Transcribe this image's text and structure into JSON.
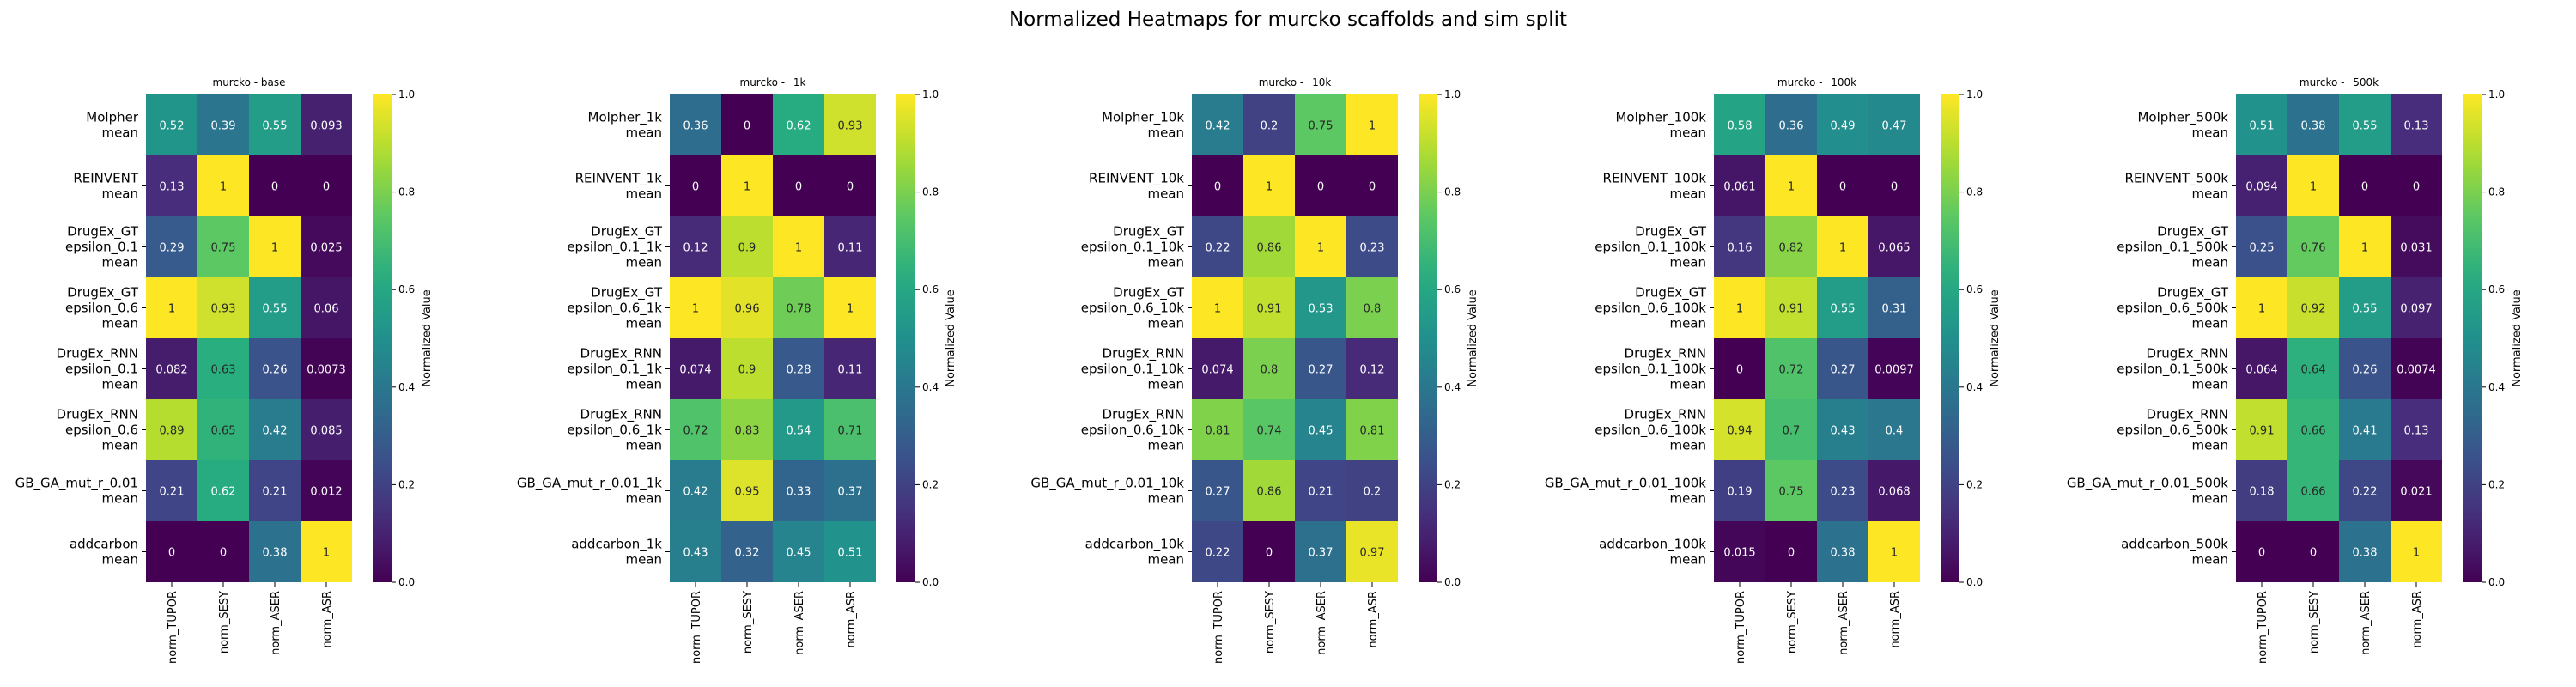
{
  "page": {
    "title": "Normalized Heatmaps for murcko scaffolds and sim split"
  },
  "chart_data": [
    {
      "type": "heatmap",
      "title": "murcko - base",
      "columns": [
        "norm_TUPOR",
        "norm_SESY",
        "norm_ASER",
        "norm_ASR"
      ],
      "rows": [
        [
          "Molpher",
          "mean"
        ],
        [
          "REINVENT",
          "mean"
        ],
        [
          "DrugEx_GT",
          "epsilon_0.1",
          "mean"
        ],
        [
          "DrugEx_GT",
          "epsilon_0.6",
          "mean"
        ],
        [
          "DrugEx_RNN",
          "epsilon_0.1",
          "mean"
        ],
        [
          "DrugEx_RNN",
          "epsilon_0.6",
          "mean"
        ],
        [
          "GB_GA_mut_r_0.01",
          "mean"
        ],
        [
          "addcarbon",
          "mean"
        ]
      ],
      "values": [
        [
          0.52,
          0.39,
          0.55,
          0.093
        ],
        [
          0.13,
          1,
          0,
          0
        ],
        [
          0.29,
          0.75,
          1,
          0.025
        ],
        [
          1,
          0.93,
          0.55,
          0.06
        ],
        [
          0.082,
          0.63,
          0.26,
          0.0073
        ],
        [
          0.89,
          0.65,
          0.42,
          0.085
        ],
        [
          0.21,
          0.62,
          0.21,
          0.012
        ],
        [
          0,
          0,
          0.38,
          1
        ]
      ],
      "value_labels": [
        [
          "0.52",
          "0.39",
          "0.55",
          "0.093"
        ],
        [
          "0.13",
          "1",
          "0",
          "0"
        ],
        [
          "0.29",
          "0.75",
          "1",
          "0.025"
        ],
        [
          "1",
          "0.93",
          "0.55",
          "0.06"
        ],
        [
          "0.082",
          "0.63",
          "0.26",
          "0.0073"
        ],
        [
          "0.89",
          "0.65",
          "0.42",
          "0.085"
        ],
        [
          "0.21",
          "0.62",
          "0.21",
          "0.012"
        ],
        [
          "0",
          "0",
          "0.38",
          "1"
        ]
      ],
      "colorbar": {
        "label": "Normalized Value",
        "range": [
          0,
          1
        ],
        "ticks": [
          "0.0",
          "0.2",
          "0.4",
          "0.6",
          "0.8",
          "1.0"
        ],
        "colormap": "viridis"
      }
    },
    {
      "type": "heatmap",
      "title": "murcko - _1k",
      "columns": [
        "norm_TUPOR",
        "norm_SESY",
        "norm_ASER",
        "norm_ASR"
      ],
      "rows": [
        [
          "Molpher_1k",
          "mean"
        ],
        [
          "REINVENT_1k",
          "mean"
        ],
        [
          "DrugEx_GT",
          "epsilon_0.1_1k",
          "mean"
        ],
        [
          "DrugEx_GT",
          "epsilon_0.6_1k",
          "mean"
        ],
        [
          "DrugEx_RNN",
          "epsilon_0.1_1k",
          "mean"
        ],
        [
          "DrugEx_RNN",
          "epsilon_0.6_1k",
          "mean"
        ],
        [
          "GB_GA_mut_r_0.01_1k",
          "mean"
        ],
        [
          "addcarbon_1k",
          "mean"
        ]
      ],
      "values": [
        [
          0.36,
          0,
          0.62,
          0.93
        ],
        [
          0,
          1,
          0,
          0
        ],
        [
          0.12,
          0.9,
          1,
          0.11
        ],
        [
          1,
          0.96,
          0.78,
          1
        ],
        [
          0.074,
          0.9,
          0.28,
          0.11
        ],
        [
          0.72,
          0.83,
          0.54,
          0.71
        ],
        [
          0.42,
          0.95,
          0.33,
          0.37
        ],
        [
          0.43,
          0.32,
          0.45,
          0.51
        ]
      ],
      "value_labels": [
        [
          "0.36",
          "0",
          "0.62",
          "0.93"
        ],
        [
          "0",
          "1",
          "0",
          "0"
        ],
        [
          "0.12",
          "0.9",
          "1",
          "0.11"
        ],
        [
          "1",
          "0.96",
          "0.78",
          "1"
        ],
        [
          "0.074",
          "0.9",
          "0.28",
          "0.11"
        ],
        [
          "0.72",
          "0.83",
          "0.54",
          "0.71"
        ],
        [
          "0.42",
          "0.95",
          "0.33",
          "0.37"
        ],
        [
          "0.43",
          "0.32",
          "0.45",
          "0.51"
        ]
      ],
      "colorbar": {
        "label": "Normalized Value",
        "range": [
          0,
          1
        ],
        "ticks": [
          "0.0",
          "0.2",
          "0.4",
          "0.6",
          "0.8",
          "1.0"
        ],
        "colormap": "viridis"
      }
    },
    {
      "type": "heatmap",
      "title": "murcko - _10k",
      "columns": [
        "norm_TUPOR",
        "norm_SESY",
        "norm_ASER",
        "norm_ASR"
      ],
      "rows": [
        [
          "Molpher_10k",
          "mean"
        ],
        [
          "REINVENT_10k",
          "mean"
        ],
        [
          "DrugEx_GT",
          "epsilon_0.1_10k",
          "mean"
        ],
        [
          "DrugEx_GT",
          "epsilon_0.6_10k",
          "mean"
        ],
        [
          "DrugEx_RNN",
          "epsilon_0.1_10k",
          "mean"
        ],
        [
          "DrugEx_RNN",
          "epsilon_0.6_10k",
          "mean"
        ],
        [
          "GB_GA_mut_r_0.01_10k",
          "mean"
        ],
        [
          "addcarbon_10k",
          "mean"
        ]
      ],
      "values": [
        [
          0.42,
          0.2,
          0.75,
          1
        ],
        [
          0,
          1,
          0,
          0
        ],
        [
          0.22,
          0.86,
          1,
          0.23
        ],
        [
          1,
          0.91,
          0.53,
          0.8
        ],
        [
          0.074,
          0.8,
          0.27,
          0.12
        ],
        [
          0.81,
          0.74,
          0.45,
          0.81
        ],
        [
          0.27,
          0.86,
          0.21,
          0.2
        ],
        [
          0.22,
          0,
          0.37,
          0.97
        ]
      ],
      "value_labels": [
        [
          "0.42",
          "0.2",
          "0.75",
          "1"
        ],
        [
          "0",
          "1",
          "0",
          "0"
        ],
        [
          "0.22",
          "0.86",
          "1",
          "0.23"
        ],
        [
          "1",
          "0.91",
          "0.53",
          "0.8"
        ],
        [
          "0.074",
          "0.8",
          "0.27",
          "0.12"
        ],
        [
          "0.81",
          "0.74",
          "0.45",
          "0.81"
        ],
        [
          "0.27",
          "0.86",
          "0.21",
          "0.2"
        ],
        [
          "0.22",
          "0",
          "0.37",
          "0.97"
        ]
      ],
      "colorbar": {
        "label": "Normalized Value",
        "range": [
          0,
          1
        ],
        "ticks": [
          "0.0",
          "0.2",
          "0.4",
          "0.6",
          "0.8",
          "1.0"
        ],
        "colormap": "viridis"
      }
    },
    {
      "type": "heatmap",
      "title": "murcko - _100k",
      "columns": [
        "norm_TUPOR",
        "norm_SESY",
        "norm_ASER",
        "norm_ASR"
      ],
      "rows": [
        [
          "Molpher_100k",
          "mean"
        ],
        [
          "REINVENT_100k",
          "mean"
        ],
        [
          "DrugEx_GT",
          "epsilon_0.1_100k",
          "mean"
        ],
        [
          "DrugEx_GT",
          "epsilon_0.6_100k",
          "mean"
        ],
        [
          "DrugEx_RNN",
          "epsilon_0.1_100k",
          "mean"
        ],
        [
          "DrugEx_RNN",
          "epsilon_0.6_100k",
          "mean"
        ],
        [
          "GB_GA_mut_r_0.01_100k",
          "mean"
        ],
        [
          "addcarbon_100k",
          "mean"
        ]
      ],
      "values": [
        [
          0.58,
          0.36,
          0.49,
          0.47
        ],
        [
          0.061,
          1,
          0,
          0
        ],
        [
          0.16,
          0.82,
          1,
          0.065
        ],
        [
          1,
          0.91,
          0.55,
          0.31
        ],
        [
          0,
          0.72,
          0.27,
          0.0097
        ],
        [
          0.94,
          0.7,
          0.43,
          0.4
        ],
        [
          0.19,
          0.75,
          0.23,
          0.068
        ],
        [
          0.015,
          0,
          0.38,
          1
        ]
      ],
      "value_labels": [
        [
          "0.58",
          "0.36",
          "0.49",
          "0.47"
        ],
        [
          "0.061",
          "1",
          "0",
          "0"
        ],
        [
          "0.16",
          "0.82",
          "1",
          "0.065"
        ],
        [
          "1",
          "0.91",
          "0.55",
          "0.31"
        ],
        [
          "0",
          "0.72",
          "0.27",
          "0.0097"
        ],
        [
          "0.94",
          "0.7",
          "0.43",
          "0.4"
        ],
        [
          "0.19",
          "0.75",
          "0.23",
          "0.068"
        ],
        [
          "0.015",
          "0",
          "0.38",
          "1"
        ]
      ],
      "colorbar": {
        "label": "Normalized Value",
        "range": [
          0,
          1
        ],
        "ticks": [
          "0.0",
          "0.2",
          "0.4",
          "0.6",
          "0.8",
          "1.0"
        ],
        "colormap": "viridis"
      }
    },
    {
      "type": "heatmap",
      "title": "murcko - _500k",
      "columns": [
        "norm_TUPOR",
        "norm_SESY",
        "norm_ASER",
        "norm_ASR"
      ],
      "rows": [
        [
          "Molpher_500k",
          "mean"
        ],
        [
          "REINVENT_500k",
          "mean"
        ],
        [
          "DrugEx_GT",
          "epsilon_0.1_500k",
          "mean"
        ],
        [
          "DrugEx_GT",
          "epsilon_0.6_500k",
          "mean"
        ],
        [
          "DrugEx_RNN",
          "epsilon_0.1_500k",
          "mean"
        ],
        [
          "DrugEx_RNN",
          "epsilon_0.6_500k",
          "mean"
        ],
        [
          "GB_GA_mut_r_0.01_500k",
          "mean"
        ],
        [
          "addcarbon_500k",
          "mean"
        ]
      ],
      "values": [
        [
          0.51,
          0.38,
          0.55,
          0.13
        ],
        [
          0.094,
          1,
          0,
          0
        ],
        [
          0.25,
          0.76,
          1,
          0.031
        ],
        [
          1,
          0.92,
          0.55,
          0.097
        ],
        [
          0.064,
          0.64,
          0.26,
          0.0074
        ],
        [
          0.91,
          0.66,
          0.41,
          0.13
        ],
        [
          0.18,
          0.66,
          0.22,
          0.021
        ],
        [
          0,
          0,
          0.38,
          1
        ]
      ],
      "value_labels": [
        [
          "0.51",
          "0.38",
          "0.55",
          "0.13"
        ],
        [
          "0.094",
          "1",
          "0",
          "0"
        ],
        [
          "0.25",
          "0.76",
          "1",
          "0.031"
        ],
        [
          "1",
          "0.92",
          "0.55",
          "0.097"
        ],
        [
          "0.064",
          "0.64",
          "0.26",
          "0.0074"
        ],
        [
          "0.91",
          "0.66",
          "0.41",
          "0.13"
        ],
        [
          "0.18",
          "0.66",
          "0.22",
          "0.021"
        ],
        [
          "0",
          "0",
          "0.38",
          "1"
        ]
      ],
      "colorbar": {
        "label": "Normalized Value",
        "range": [
          0,
          1
        ],
        "ticks": [
          "0.0",
          "0.2",
          "0.4",
          "0.6",
          "0.8",
          "1.0"
        ],
        "colormap": "viridis"
      }
    }
  ]
}
